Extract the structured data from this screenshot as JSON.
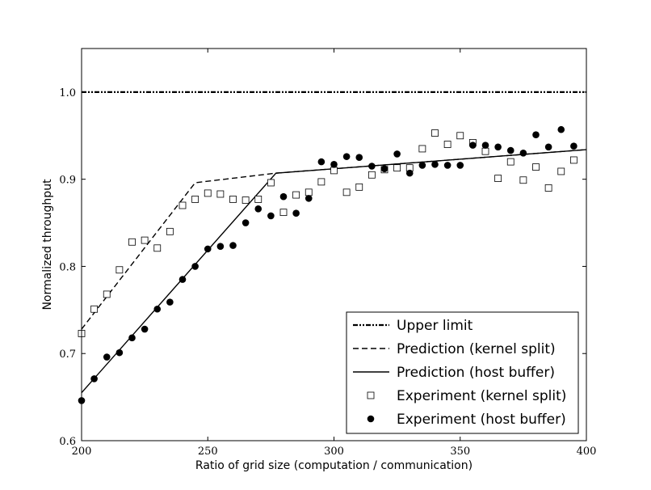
{
  "chart_data": {
    "type": "scatter",
    "title": "",
    "xlabel": "Ratio of grid size (computation / communication)",
    "ylabel": "Normalized throughput",
    "xlim": [
      200,
      400
    ],
    "ylim": [
      0.6,
      1.05
    ],
    "xticks": [
      200,
      250,
      300,
      350,
      400
    ],
    "xtick_labels": [
      "200",
      "250",
      "300",
      "350",
      "400"
    ],
    "yticks": [
      0.6,
      0.7,
      0.8,
      0.9,
      1.0
    ],
    "ytick_labels": [
      "0.6",
      "0.7",
      "0.8",
      "0.9",
      "1.0"
    ],
    "grid": false,
    "legend_position": "bottom-right",
    "series": [
      {
        "name": "Upper limit",
        "kind": "line",
        "style": "dashdot",
        "x": [
          200,
          400
        ],
        "y": [
          1.0,
          1.0
        ]
      },
      {
        "name": "Prediction (kernel split)",
        "kind": "line",
        "style": "dashed",
        "x": [
          200,
          245,
          277,
          400
        ],
        "y": [
          0.728,
          0.896,
          0.907,
          0.934
        ]
      },
      {
        "name": "Prediction (host buffer)",
        "kind": "line",
        "style": "solid",
        "x": [
          200,
          277,
          400
        ],
        "y": [
          0.655,
          0.907,
          0.934
        ]
      },
      {
        "name": "Experiment (kernel split)",
        "kind": "scatter",
        "marker": "open-square",
        "x": [
          200,
          205,
          210,
          215,
          220,
          225,
          230,
          235,
          240,
          245,
          250,
          255,
          260,
          265,
          270,
          275,
          280,
          285,
          290,
          295,
          300,
          305,
          310,
          315,
          320,
          325,
          330,
          335,
          340,
          345,
          350,
          355,
          360,
          365,
          370,
          375,
          380,
          385,
          390,
          395
        ],
        "y": [
          0.723,
          0.751,
          0.768,
          0.796,
          0.828,
          0.83,
          0.821,
          0.84,
          0.87,
          0.877,
          0.884,
          0.883,
          0.877,
          0.876,
          0.877,
          0.896,
          0.862,
          0.882,
          0.885,
          0.897,
          0.91,
          0.885,
          0.891,
          0.905,
          0.911,
          0.913,
          0.913,
          0.935,
          0.953,
          0.94,
          0.95,
          0.942,
          0.932,
          0.901,
          0.92,
          0.899,
          0.914,
          0.89,
          0.909,
          0.922
        ]
      },
      {
        "name": "Experiment (host buffer)",
        "kind": "scatter",
        "marker": "filled-circle",
        "x": [
          200,
          205,
          210,
          215,
          220,
          225,
          230,
          235,
          240,
          245,
          250,
          255,
          260,
          265,
          270,
          275,
          280,
          285,
          290,
          295,
          300,
          305,
          310,
          315,
          320,
          325,
          330,
          335,
          340,
          345,
          350,
          355,
          360,
          365,
          370,
          375,
          380,
          385,
          390,
          395
        ],
        "y": [
          0.646,
          0.671,
          0.696,
          0.701,
          0.718,
          0.728,
          0.751,
          0.759,
          0.785,
          0.8,
          0.82,
          0.823,
          0.824,
          0.85,
          0.866,
          0.858,
          0.88,
          0.861,
          0.878,
          0.92,
          0.917,
          0.926,
          0.925,
          0.915,
          0.912,
          0.929,
          0.907,
          0.916,
          0.917,
          0.916,
          0.916,
          0.939,
          0.939,
          0.937,
          0.933,
          0.93,
          0.951,
          0.937,
          0.957,
          0.938
        ]
      }
    ],
    "legend": {
      "entries": [
        "Upper limit",
        "Prediction (kernel split)",
        "Prediction (host buffer)",
        "Experiment (kernel split)",
        "Experiment (host buffer)"
      ]
    }
  }
}
